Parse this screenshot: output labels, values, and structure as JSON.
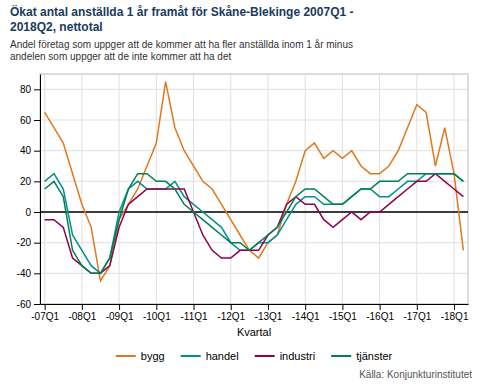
{
  "chart_data": {
    "type": "line",
    "title": [
      "Ökat antal anställda 1 år framåt för Skåne-Blekinge 2007Q1 -",
      "2018Q2, nettotal"
    ],
    "subtitle": [
      "Andel företag som uppger att de kommer att ha fler anställda inom 1 år minus",
      "andelen som uppger att de inte kommer att ha det"
    ],
    "x_label": "Kvartal",
    "source": "Källa: Konjunkturinstitutet",
    "categories": [
      "-07Q1",
      null,
      null,
      null,
      "-08Q1",
      null,
      null,
      null,
      "-09Q1",
      null,
      null,
      null,
      "-10Q1",
      null,
      null,
      null,
      "-11Q1",
      null,
      null,
      null,
      "-12Q1",
      null,
      null,
      null,
      "-13Q1",
      null,
      null,
      null,
      "-14Q1",
      null,
      null,
      null,
      "-15Q1",
      null,
      null,
      null,
      "-16Q1",
      null,
      null,
      null,
      "-17Q1",
      null,
      null,
      null,
      "-18Q1",
      null
    ],
    "series": [
      {
        "name": "bygg",
        "color": "#E07820",
        "values": [
          65,
          55,
          45,
          25,
          5,
          -10,
          -45,
          -35,
          -5,
          5,
          15,
          30,
          45,
          85,
          55,
          40,
          30,
          20,
          15,
          5,
          -5,
          -15,
          -25,
          -30,
          -20,
          -15,
          5,
          20,
          40,
          45,
          35,
          40,
          35,
          40,
          30,
          25,
          25,
          30,
          40,
          55,
          70,
          65,
          30,
          55,
          25,
          -25
        ]
      },
      {
        "name": "handel",
        "color": "#009090",
        "values": [
          20,
          25,
          15,
          -15,
          -25,
          -35,
          -40,
          -30,
          0,
          15,
          20,
          15,
          15,
          15,
          20,
          10,
          5,
          0,
          -5,
          -10,
          -20,
          -25,
          -25,
          -20,
          -20,
          -15,
          -5,
          5,
          10,
          10,
          5,
          5,
          5,
          10,
          15,
          15,
          10,
          10,
          15,
          20,
          20,
          25,
          25,
          25,
          25,
          20
        ]
      },
      {
        "name": "industri",
        "color": "#900050",
        "values": [
          -5,
          -5,
          -10,
          -30,
          -35,
          -40,
          -40,
          -35,
          -10,
          5,
          10,
          15,
          15,
          15,
          15,
          15,
          0,
          -15,
          -25,
          -30,
          -30,
          -25,
          -25,
          -25,
          -15,
          -10,
          5,
          10,
          5,
          5,
          -5,
          -10,
          -5,
          0,
          -5,
          0,
          0,
          5,
          10,
          15,
          20,
          20,
          25,
          20,
          15,
          10
        ]
      },
      {
        "name": "tjänster",
        "color": "#008050",
        "values": [
          15,
          20,
          10,
          -25,
          -35,
          -40,
          -40,
          -30,
          -5,
          15,
          25,
          25,
          20,
          20,
          15,
          5,
          0,
          -5,
          -10,
          -15,
          -20,
          -20,
          -25,
          -20,
          -15,
          -10,
          0,
          10,
          15,
          15,
          10,
          5,
          5,
          10,
          15,
          15,
          20,
          20,
          20,
          25,
          25,
          25,
          25,
          25,
          25,
          20
        ]
      }
    ],
    "ylim": [
      -60,
      90
    ],
    "yticks": [
      -60,
      -40,
      -20,
      0,
      20,
      40,
      60,
      80
    ],
    "grid": true,
    "legend": "bottom"
  }
}
